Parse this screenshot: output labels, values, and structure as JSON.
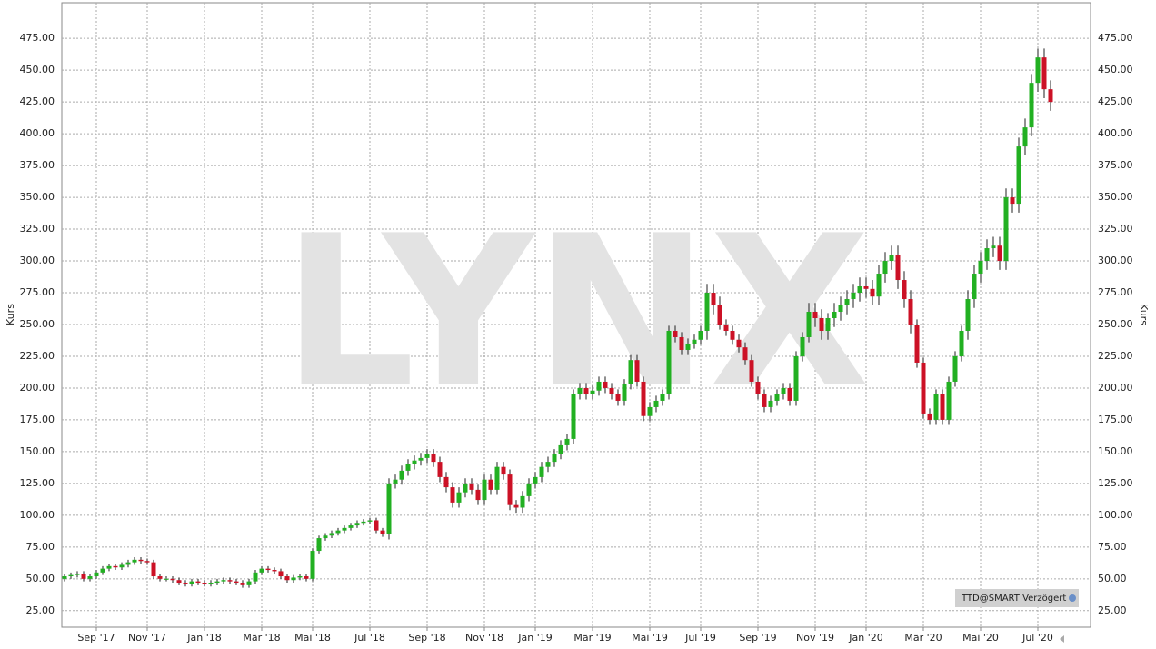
{
  "chart_data": {
    "type": "candlestick",
    "watermark": "LYNX",
    "ylabel": "Kurs",
    "badge": "TTD@SMART Verzögert",
    "up_color": "#22b022",
    "down_color": "#cc1126",
    "grid": true,
    "ylim": [
      12,
      503
    ],
    "yticks": [
      {
        "value": 25,
        "label": "25.00"
      },
      {
        "value": 50,
        "label": "50.00"
      },
      {
        "value": 75,
        "label": "75.00"
      },
      {
        "value": 100,
        "label": "100.00"
      },
      {
        "value": 125,
        "label": "125.00"
      },
      {
        "value": 150,
        "label": "150.00"
      },
      {
        "value": 175,
        "label": "175.00"
      },
      {
        "value": 200,
        "label": "200.00"
      },
      {
        "value": 225,
        "label": "225.00"
      },
      {
        "value": 250,
        "label": "250.00"
      },
      {
        "value": 275,
        "label": "275.00"
      },
      {
        "value": 300,
        "label": "300.00"
      },
      {
        "value": 325,
        "label": "325.00"
      },
      {
        "value": 350,
        "label": "350.00"
      },
      {
        "value": 375,
        "label": "375.00"
      },
      {
        "value": 400,
        "label": "400.00"
      },
      {
        "value": 425,
        "label": "425.00"
      },
      {
        "value": 450,
        "label": "450.00"
      },
      {
        "value": 475,
        "label": "475.00"
      }
    ],
    "categories": [
      null,
      null,
      null,
      null,
      null,
      "Sep '17",
      null,
      null,
      null,
      null,
      null,
      null,
      null,
      "Nov '17",
      null,
      null,
      null,
      null,
      null,
      null,
      null,
      null,
      "Jan '18",
      null,
      null,
      null,
      null,
      null,
      null,
      null,
      null,
      "Mär '18",
      null,
      null,
      null,
      null,
      null,
      null,
      null,
      "Mai '18",
      null,
      null,
      null,
      null,
      null,
      null,
      null,
      null,
      "Jul '18",
      null,
      null,
      null,
      null,
      null,
      null,
      null,
      null,
      "Sep '18",
      null,
      null,
      null,
      null,
      null,
      null,
      null,
      null,
      "Nov '18",
      null,
      null,
      null,
      null,
      null,
      null,
      null,
      "Jan '19",
      null,
      null,
      null,
      null,
      null,
      null,
      null,
      null,
      "Mär '19",
      null,
      null,
      null,
      null,
      null,
      null,
      null,
      null,
      "Mai '19",
      null,
      null,
      null,
      null,
      null,
      null,
      null,
      "Jul '19",
      null,
      null,
      null,
      null,
      null,
      null,
      null,
      null,
      "Sep '19",
      null,
      null,
      null,
      null,
      null,
      null,
      null,
      null,
      "Nov '19",
      null,
      null,
      null,
      null,
      null,
      null,
      null,
      "Jan '20",
      null,
      null,
      null,
      null,
      null,
      null,
      null,
      null,
      "Mär '20",
      null,
      null,
      null,
      null,
      null,
      null,
      null,
      null,
      "Mai '20",
      null,
      null,
      null,
      null,
      null,
      null,
      null,
      null,
      "Jul '20",
      null,
      null
    ],
    "open": [
      50,
      52,
      53,
      54,
      50,
      52,
      55,
      58,
      60,
      59,
      61,
      63,
      65,
      64,
      63,
      52,
      50,
      50,
      49,
      47,
      46,
      48,
      47,
      46,
      47,
      48,
      49,
      48,
      47,
      45,
      48,
      55,
      58,
      57,
      56,
      52,
      49,
      51,
      52,
      50,
      72,
      82,
      84,
      86,
      88,
      90,
      92,
      94,
      95,
      96,
      88,
      85,
      125,
      128,
      135,
      140,
      143,
      145,
      148,
      142,
      130,
      122,
      110,
      118,
      125,
      120,
      112,
      128,
      120,
      138,
      132,
      108,
      106,
      115,
      125,
      130,
      138,
      142,
      148,
      155,
      160,
      195,
      200,
      195,
      198,
      205,
      200,
      195,
      190,
      203,
      222,
      205,
      178,
      185,
      190,
      195,
      245,
      240,
      230,
      235,
      238,
      245,
      275,
      265,
      250,
      245,
      238,
      232,
      222,
      205,
      195,
      185,
      190,
      195,
      200,
      190,
      225,
      240,
      260,
      255,
      245,
      255,
      260,
      265,
      270,
      275,
      280,
      278,
      272,
      290,
      300,
      305,
      285,
      270,
      250,
      220,
      180,
      175,
      195,
      175,
      205,
      225,
      245,
      270,
      290,
      300,
      310,
      312,
      300,
      350,
      345,
      390,
      405,
      440,
      460,
      435
    ],
    "high": [
      54,
      55,
      56,
      56,
      54,
      57,
      60,
      62,
      62,
      63,
      65,
      67,
      67,
      66,
      65,
      54,
      52,
      52,
      51,
      49,
      50,
      50,
      49,
      49,
      50,
      51,
      51,
      50,
      49,
      50,
      57,
      60,
      60,
      59,
      58,
      54,
      53,
      54,
      54,
      74,
      84,
      86,
      88,
      90,
      92,
      94,
      96,
      97,
      98,
      98,
      90,
      129,
      132,
      139,
      144,
      147,
      149,
      152,
      152,
      146,
      134,
      126,
      122,
      129,
      129,
      124,
      132,
      132,
      142,
      142,
      136,
      112,
      119,
      129,
      134,
      142,
      146,
      152,
      159,
      164,
      199,
      204,
      204,
      202,
      209,
      209,
      204,
      199,
      207,
      226,
      226,
      209,
      189,
      194,
      199,
      249,
      249,
      244,
      239,
      242,
      249,
      282,
      282,
      272,
      254,
      249,
      242,
      236,
      226,
      209,
      199,
      194,
      199,
      204,
      204,
      229,
      244,
      267,
      267,
      262,
      259,
      267,
      272,
      277,
      282,
      287,
      287,
      285,
      297,
      307,
      312,
      312,
      292,
      277,
      254,
      224,
      184,
      199,
      199,
      209,
      229,
      249,
      277,
      297,
      307,
      317,
      319,
      319,
      357,
      357,
      397,
      412,
      447,
      467,
      467,
      442
    ],
    "low": [
      48,
      50,
      51,
      48,
      48,
      50,
      53,
      56,
      57,
      57,
      59,
      61,
      62,
      61,
      50,
      48,
      48,
      47,
      45,
      44,
      44,
      45,
      44,
      44,
      45,
      46,
      46,
      45,
      43,
      43,
      46,
      53,
      55,
      54,
      50,
      47,
      47,
      49,
      48,
      48,
      70,
      80,
      82,
      84,
      86,
      88,
      90,
      92,
      93,
      86,
      83,
      81,
      121,
      124,
      131,
      136,
      139,
      141,
      138,
      126,
      118,
      106,
      106,
      114,
      116,
      108,
      108,
      116,
      116,
      128,
      104,
      102,
      102,
      111,
      121,
      126,
      134,
      138,
      144,
      151,
      156,
      191,
      191,
      191,
      194,
      196,
      191,
      186,
      186,
      199,
      201,
      174,
      174,
      181,
      186,
      191,
      236,
      226,
      226,
      231,
      234,
      238,
      258,
      246,
      241,
      234,
      228,
      218,
      201,
      191,
      181,
      181,
      186,
      191,
      186,
      186,
      221,
      236,
      248,
      238,
      238,
      248,
      253,
      258,
      263,
      268,
      271,
      265,
      265,
      283,
      293,
      278,
      263,
      243,
      216,
      176,
      171,
      171,
      171,
      171,
      201,
      221,
      238,
      263,
      283,
      293,
      303,
      293,
      293,
      338,
      338,
      383,
      398,
      433,
      428,
      418
    ],
    "close": [
      52,
      53,
      54,
      50,
      52,
      55,
      58,
      60,
      59,
      61,
      63,
      65,
      64,
      63,
      52,
      50,
      50,
      49,
      47,
      46,
      48,
      47,
      46,
      47,
      48,
      49,
      48,
      47,
      45,
      48,
      55,
      58,
      57,
      56,
      52,
      49,
      51,
      52,
      50,
      72,
      82,
      84,
      86,
      88,
      90,
      92,
      94,
      95,
      96,
      88,
      85,
      125,
      128,
      135,
      140,
      143,
      145,
      148,
      142,
      130,
      122,
      110,
      118,
      125,
      120,
      112,
      128,
      120,
      138,
      132,
      108,
      106,
      115,
      125,
      130,
      138,
      142,
      148,
      155,
      160,
      195,
      200,
      195,
      198,
      205,
      200,
      195,
      190,
      203,
      222,
      205,
      178,
      185,
      190,
      195,
      245,
      240,
      230,
      235,
      238,
      245,
      275,
      265,
      250,
      245,
      238,
      232,
      222,
      205,
      195,
      185,
      190,
      195,
      200,
      190,
      225,
      240,
      260,
      255,
      245,
      255,
      260,
      265,
      270,
      275,
      280,
      278,
      272,
      290,
      300,
      305,
      285,
      270,
      250,
      220,
      180,
      175,
      195,
      175,
      205,
      225,
      245,
      270,
      290,
      300,
      310,
      312,
      300,
      350,
      345,
      390,
      405,
      440,
      460,
      435,
      425
    ]
  }
}
